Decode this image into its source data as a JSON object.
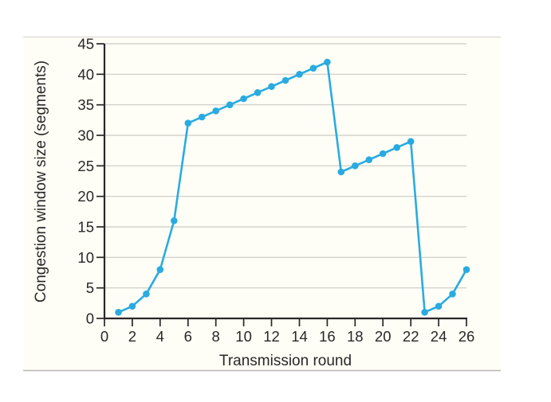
{
  "chart_data": {
    "type": "line",
    "title": "",
    "xlabel": "Transmission round",
    "ylabel": "Congestion window size (segments)",
    "x": [
      1,
      2,
      3,
      4,
      5,
      6,
      7,
      8,
      9,
      10,
      11,
      12,
      13,
      14,
      15,
      16,
      17,
      18,
      19,
      20,
      21,
      22,
      23,
      24,
      25,
      26
    ],
    "y": [
      1,
      2,
      4,
      8,
      16,
      32,
      33,
      34,
      35,
      36,
      37,
      38,
      39,
      40,
      41,
      42,
      24,
      25,
      26,
      27,
      28,
      29,
      1,
      2,
      4,
      8
    ],
    "xlim": [
      0,
      26
    ],
    "ylim": [
      0,
      45
    ],
    "xtick_labels": [
      0,
      2,
      4,
      6,
      8,
      10,
      12,
      14,
      16,
      18,
      20,
      22,
      24,
      26
    ],
    "ytick_labels": [
      0,
      5,
      10,
      15,
      20,
      25,
      30,
      35,
      40,
      45
    ],
    "grid": "horizontal",
    "legend": "none",
    "marker": "circle",
    "line_color": "#29abe2",
    "axis_color": "#2a2627",
    "grid_color": "#c9cac5",
    "text_color": "#2a2627",
    "panel_bg": "#fffef6",
    "panel_edge_top": "#dcdcd8",
    "panel_edge_bottom": "#b7b7b3"
  }
}
